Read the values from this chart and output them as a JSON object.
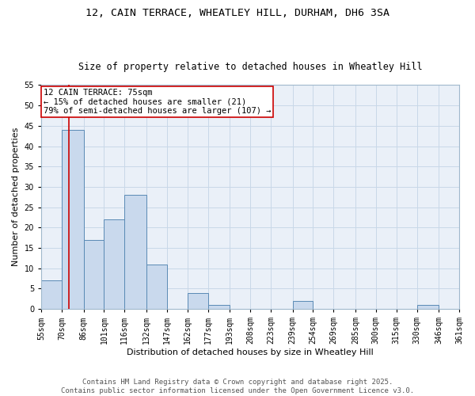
{
  "title_line1": "12, CAIN TERRACE, WHEATLEY HILL, DURHAM, DH6 3SA",
  "title_line2": "Size of property relative to detached houses in Wheatley Hill",
  "xlabel": "Distribution of detached houses by size in Wheatley Hill",
  "ylabel": "Number of detached properties",
  "bins": [
    55,
    70,
    86,
    101,
    116,
    132,
    147,
    162,
    177,
    193,
    208,
    223,
    239,
    254,
    269,
    285,
    300,
    315,
    330,
    346,
    361
  ],
  "counts": [
    7,
    44,
    17,
    22,
    28,
    11,
    0,
    4,
    1,
    0,
    0,
    0,
    2,
    0,
    0,
    0,
    0,
    0,
    1,
    0
  ],
  "bar_color": "#c9d9ed",
  "bar_edge_color": "#5a8ab5",
  "vline_x": 75,
  "vline_color": "#cc0000",
  "annotation_text": "12 CAIN TERRACE: 75sqm\n← 15% of detached houses are smaller (21)\n79% of semi-detached houses are larger (107) →",
  "annotation_box_color": "#ffffff",
  "annotation_box_edge": "#cc0000",
  "ylim": [
    0,
    55
  ],
  "yticks": [
    0,
    5,
    10,
    15,
    20,
    25,
    30,
    35,
    40,
    45,
    50,
    55
  ],
  "tick_labels": [
    "55sqm",
    "70sqm",
    "86sqm",
    "101sqm",
    "116sqm",
    "132sqm",
    "147sqm",
    "162sqm",
    "177sqm",
    "193sqm",
    "208sqm",
    "223sqm",
    "239sqm",
    "254sqm",
    "269sqm",
    "285sqm",
    "300sqm",
    "315sqm",
    "330sqm",
    "346sqm",
    "361sqm"
  ],
  "grid_color": "#c8d8e8",
  "bg_color": "#eaf0f8",
  "footer_text": "Contains HM Land Registry data © Crown copyright and database right 2025.\nContains public sector information licensed under the Open Government Licence v3.0.",
  "title_fontsize": 9.5,
  "subtitle_fontsize": 8.5,
  "axis_label_fontsize": 8,
  "tick_fontsize": 7,
  "annotation_fontsize": 7.5,
  "footer_fontsize": 6.5
}
